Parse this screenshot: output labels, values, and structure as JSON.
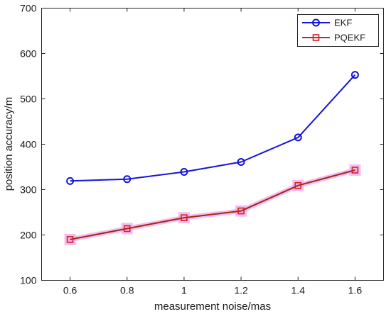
{
  "chart_data": {
    "type": "line",
    "title": "",
    "xlabel": "measurement noise/mas",
    "ylabel": "position accuracy/m",
    "x": [
      0.6,
      0.8,
      1.0,
      1.2,
      1.4,
      1.6
    ],
    "x_tick_labels": [
      "0.6",
      "0.8",
      "1",
      "1.2",
      "1.4",
      "1.6"
    ],
    "xlim": [
      0.5,
      1.7
    ],
    "ylim": [
      100,
      700
    ],
    "y_ticks": [
      100,
      200,
      300,
      400,
      500,
      600,
      700
    ],
    "y_tick_labels": [
      "100",
      "200",
      "300",
      "400",
      "500",
      "600",
      "700"
    ],
    "grid": false,
    "legend_position": "top-right",
    "series": [
      {
        "name": "EKF",
        "values": [
          319,
          323,
          339,
          361,
          415,
          553
        ],
        "line_color": "#1515d6",
        "marker": "circle",
        "marker_color": "#1515d6"
      },
      {
        "name": "PQEKF",
        "values": [
          190,
          214,
          238,
          253,
          309,
          343
        ],
        "line_color": "#9c2a14",
        "marker": "square",
        "marker_color": "#d42020",
        "legend_line_color": "#e01a1a",
        "highlight_color": "#f3b2ee"
      }
    ]
  }
}
